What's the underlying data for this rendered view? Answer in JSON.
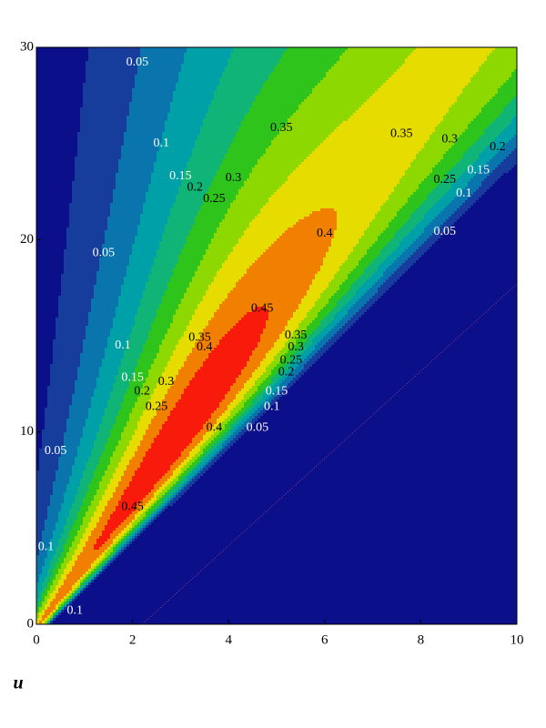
{
  "chart_data": {
    "type": "contour",
    "x_label": "u",
    "xlim": [
      0,
      10
    ],
    "ylim": [
      0,
      30
    ],
    "xticks": [
      0,
      2,
      4,
      6,
      8,
      10
    ],
    "yticks": [
      0,
      10,
      20,
      30
    ],
    "levels": [
      0.05,
      0.1,
      0.15,
      0.2,
      0.25,
      0.3,
      0.35,
      0.4,
      0.45
    ],
    "colors": [
      "#0c0f8a",
      "#163c9c",
      "#0a74ac",
      "#00a0a8",
      "#10b476",
      "#2ec41c",
      "#8cd800",
      "#e6dc00",
      "#f28000",
      "#f81a0a"
    ]
  }
}
